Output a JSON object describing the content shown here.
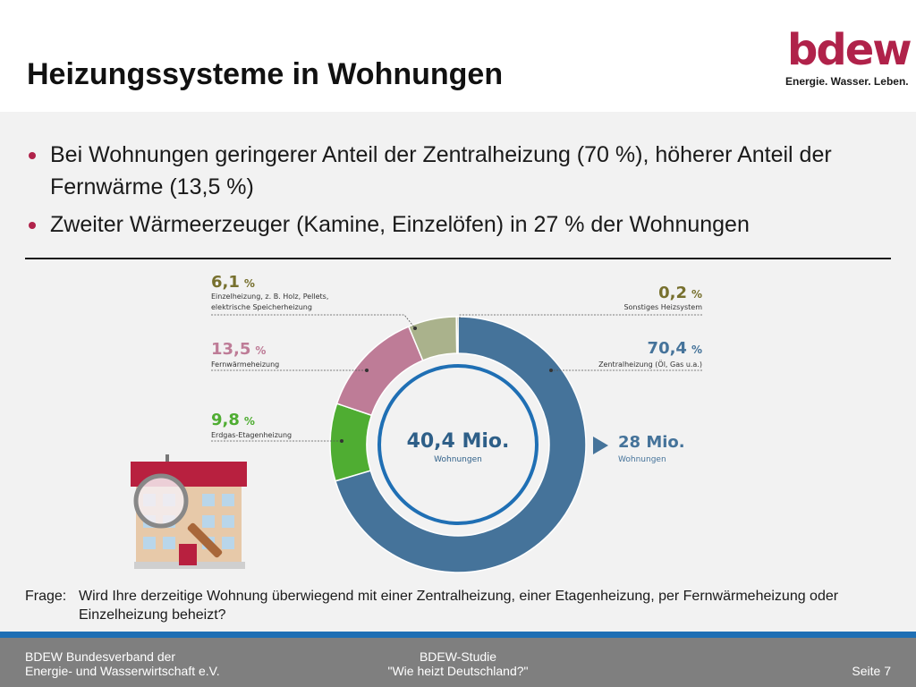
{
  "title": "Heizungssysteme in Wohnungen",
  "logo": {
    "word": "bdew",
    "tagline": "Energie. Wasser. Leben."
  },
  "bullets": [
    "Bei Wohnungen geringerer Anteil der Zentralheizung (70 %), höherer Anteil der Fernwärme (13,5 %)",
    "Zweiter Wärmeerzeuger (Kamine, Einzelöfen) in 27 % der Wohnungen"
  ],
  "chart_data": {
    "type": "pie",
    "donut": true,
    "total_label": {
      "value": "40,4 Mio.",
      "unit": "Wohnungen"
    },
    "side_label": {
      "value": "28 Mio.",
      "unit": "Wohnungen"
    },
    "unit": "%",
    "slices": [
      {
        "name": "Zentralheizung (Öl, Gas u.a.)",
        "value": 70.4,
        "value_label": "70,4",
        "color": "#45739a"
      },
      {
        "name": "Erdgas-Etagenheizung",
        "value": 9.8,
        "value_label": "9,8",
        "color": "#4fad32"
      },
      {
        "name": "Fernwärmeheizung",
        "value": 13.5,
        "value_label": "13,5",
        "color": "#be7c97"
      },
      {
        "name": "Einzelheizung, z. B. Holz, Pellets, elektrische Speicherheizung",
        "value": 6.1,
        "value_label": "6,1",
        "color": "#aab28c"
      },
      {
        "name": "Sonstiges Heizsystem",
        "value": 0.2,
        "value_label": "0,2",
        "color": "#77702e"
      }
    ]
  },
  "labels": {
    "einzel": {
      "pct": "6,1",
      "line1": "Einzelheizung, z. B. Holz, Pellets,",
      "line2": "elektrische Speicherheizung"
    },
    "fern": {
      "pct": "13,5",
      "line1": "Fernwärmeheizung"
    },
    "etage": {
      "pct": "9,8",
      "line1": "Erdgas-Etagenheizung"
    },
    "sonst": {
      "pct": "0,2",
      "line1": "Sonstiges Heizsystem"
    },
    "zentral": {
      "pct": "70,4",
      "line1": "Zentralheizung (Öl, Gas u.a.)"
    },
    "percent_sign": "%"
  },
  "question": {
    "label": "Frage:",
    "text": "Wird Ihre derzeitige Wohnung überwiegend mit einer Zentralheizung, einer Etagenheizung, per Fernwärmeheizung oder Einzelheizung beheizt?"
  },
  "footer": {
    "left_line1": "BDEW Bundesverband der",
    "left_line2": "Energie- und Wasserwirtschaft e.V.",
    "center_line1": "BDEW-Studie",
    "center_line2": "\"Wie heizt Deutschland?\"",
    "page": "Seite 7"
  }
}
